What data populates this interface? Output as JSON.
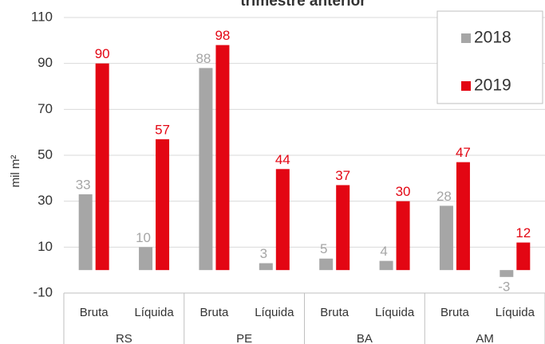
{
  "chart_data": {
    "type": "bar",
    "title": "trimestre anterior",
    "y_label": "mil m²",
    "categories": [
      "Bruta",
      "Líquida",
      "Bruta",
      "Líquida",
      "Bruta",
      "Líquida",
      "Bruta",
      "Líquida"
    ],
    "groups": [
      "RS",
      "PE",
      "BA",
      "AM"
    ],
    "series": [
      {
        "name": "2018",
        "color": "#a6a6a6",
        "values": [
          33,
          10,
          88,
          3,
          5,
          4,
          28,
          -3
        ]
      },
      {
        "name": "2019",
        "color": "#e30613",
        "values": [
          90,
          57,
          98,
          44,
          37,
          30,
          47,
          12
        ]
      }
    ],
    "ylim": [
      -10,
      110
    ],
    "yticks": [
      -10,
      10,
      30,
      50,
      70,
      90,
      110
    ],
    "grid": true,
    "legend": "upper right"
  }
}
